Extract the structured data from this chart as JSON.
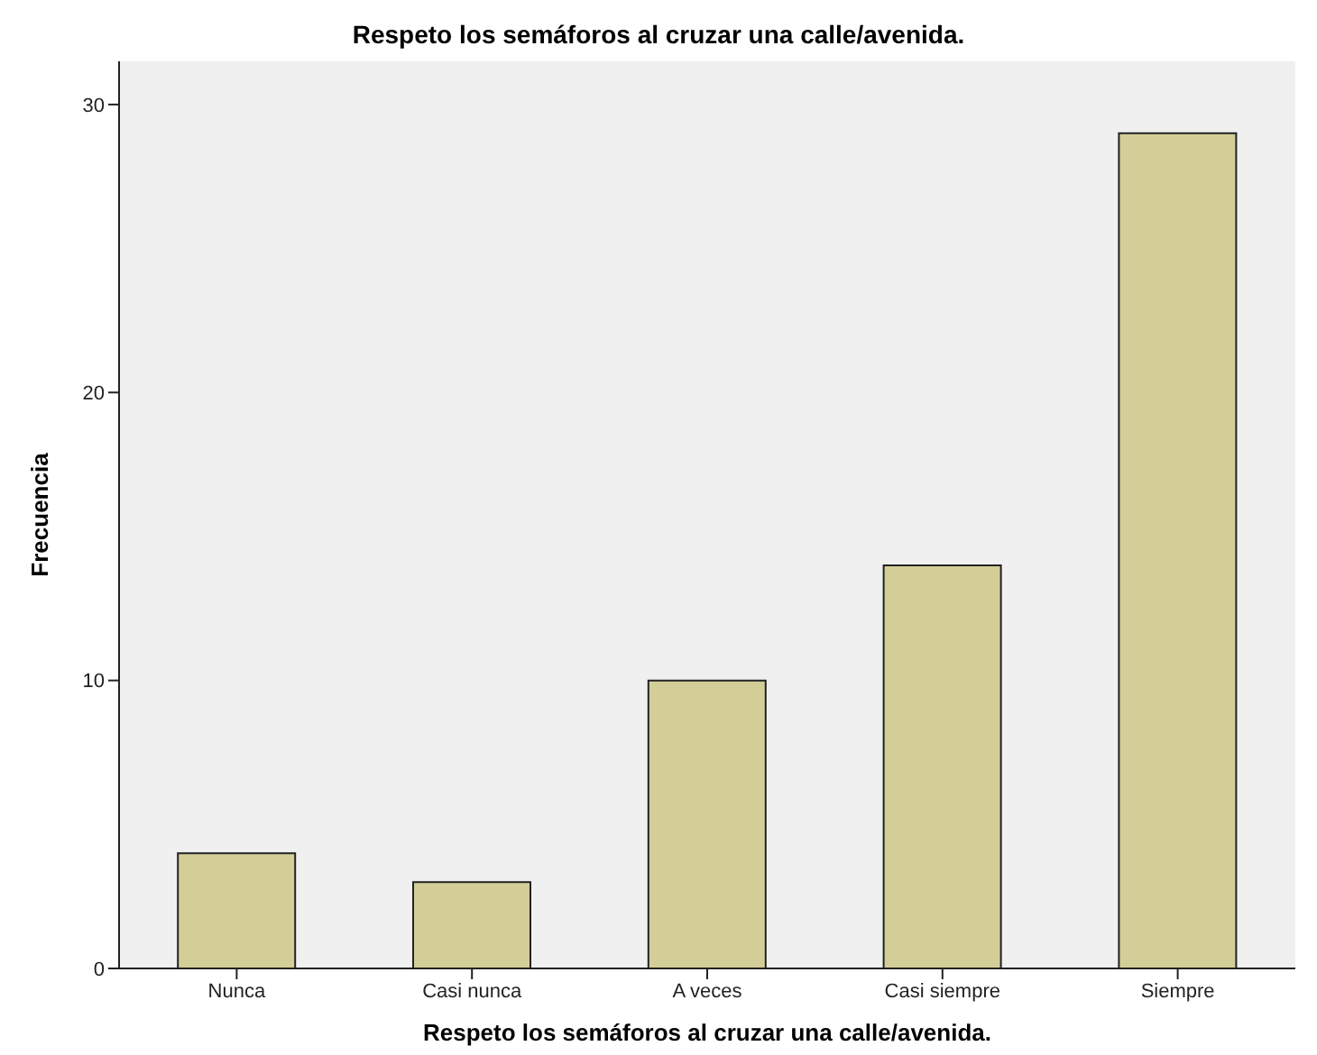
{
  "chart_data": {
    "type": "bar",
    "title": "Respeto los semáforos al cruzar una calle/avenida.",
    "xlabel": "Respeto los semáforos al cruzar una calle/avenida.",
    "ylabel": "Frecuencia",
    "categories": [
      "Nunca",
      "Casi nunca",
      "A veces",
      "Casi siempre",
      "Siempre"
    ],
    "values": [
      4,
      3,
      10,
      14,
      29
    ],
    "color": "#d3ce97",
    "ylim": [
      0,
      31.5
    ],
    "yticks": [
      0,
      10,
      20,
      30
    ],
    "grid": false
  }
}
